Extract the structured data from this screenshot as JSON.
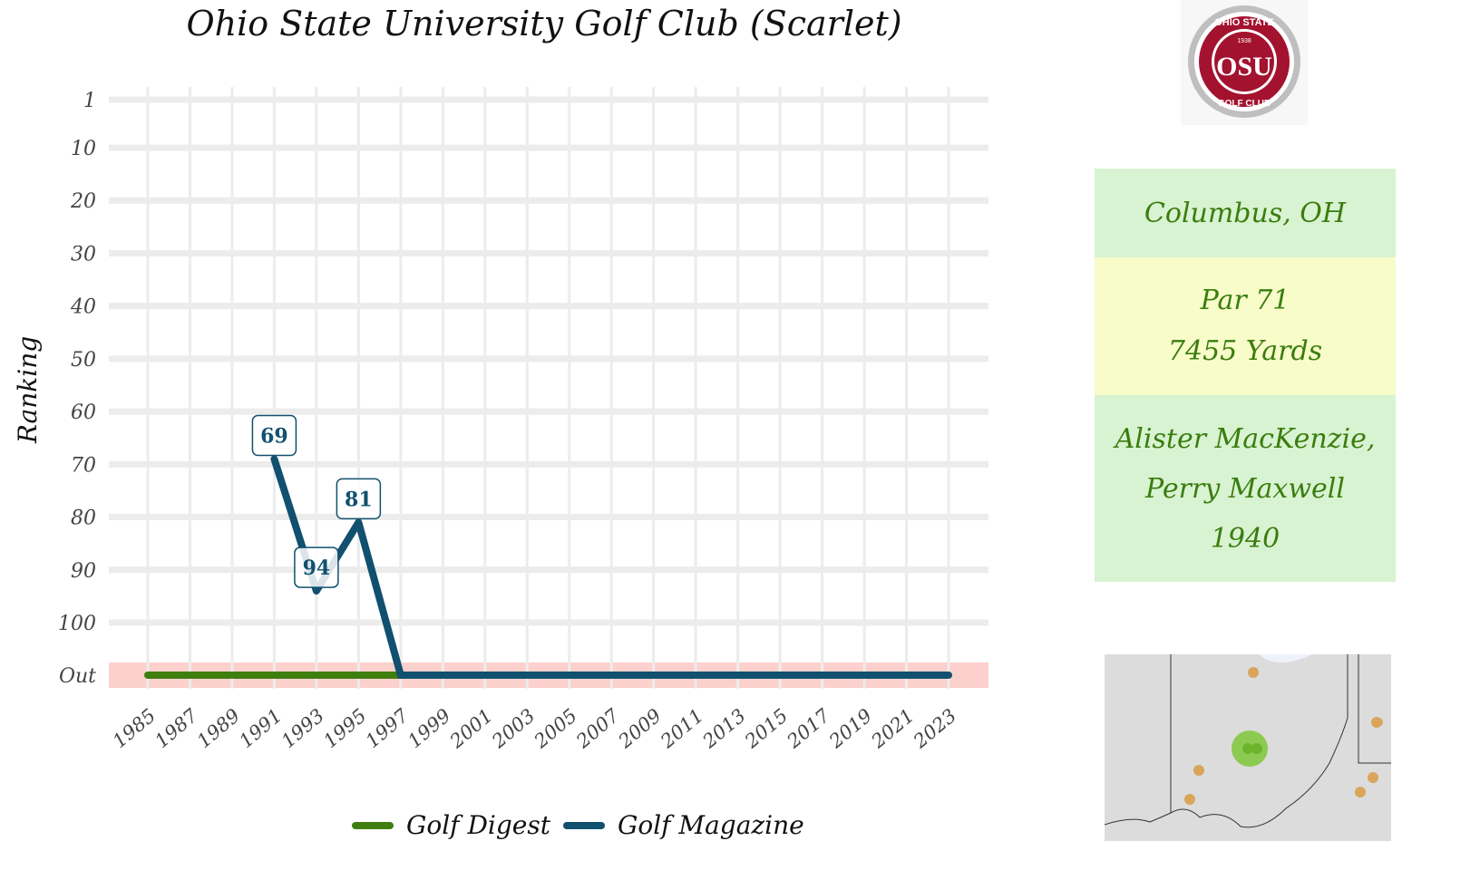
{
  "chart_data": {
    "type": "line",
    "title": "Ohio State University Golf Club (Scarlet)",
    "ylabel": "Ranking",
    "xlabel": "",
    "y_tick_labels": [
      "1",
      "10",
      "20",
      "30",
      "40",
      "50",
      "60",
      "70",
      "80",
      "90",
      "100",
      "Out"
    ],
    "x_tick_labels": [
      "1985",
      "1987",
      "1989",
      "1991",
      "1993",
      "1995",
      "1997",
      "1999",
      "2001",
      "2003",
      "2005",
      "2007",
      "2009",
      "2011",
      "2013",
      "2015",
      "2017",
      "2019",
      "2021",
      "2023"
    ],
    "xlim": [
      1985,
      2023
    ],
    "ylim": [
      1,
      "Out"
    ],
    "out_band_color": "#fcd0cc",
    "series": [
      {
        "name": "Golf Digest",
        "color": "#3f7f0f",
        "points": [
          {
            "x": 1985,
            "y": "Out"
          },
          {
            "x": 1997,
            "y": "Out"
          }
        ]
      },
      {
        "name": "Golf Magazine",
        "color": "#11506e",
        "points": [
          {
            "x": 1991,
            "y": 69,
            "label": "69"
          },
          {
            "x": 1993,
            "y": 94,
            "label": "94"
          },
          {
            "x": 1995,
            "y": 81,
            "label": "81"
          },
          {
            "x": 1997,
            "y": "Out"
          },
          {
            "x": 2023,
            "y": "Out"
          }
        ]
      }
    ],
    "grid": true,
    "legend_position": "bottom"
  },
  "logo": {
    "top_text": "OHIO STATE",
    "year": "1938",
    "letters": "OSU",
    "bottom_text": "GOLF CLUB"
  },
  "info": {
    "location": "Columbus, OH",
    "par": "Par 71",
    "yards": "7455 Yards",
    "architect_line1": "Alister MacKenzie,",
    "architect_line2": "Perry Maxwell",
    "year": "1940"
  },
  "colors": {
    "info_green": "#d8f3d1",
    "info_yellow": "#f7fcc9",
    "info_text": "#3a7d0e",
    "scarlet": "#a3122e"
  }
}
